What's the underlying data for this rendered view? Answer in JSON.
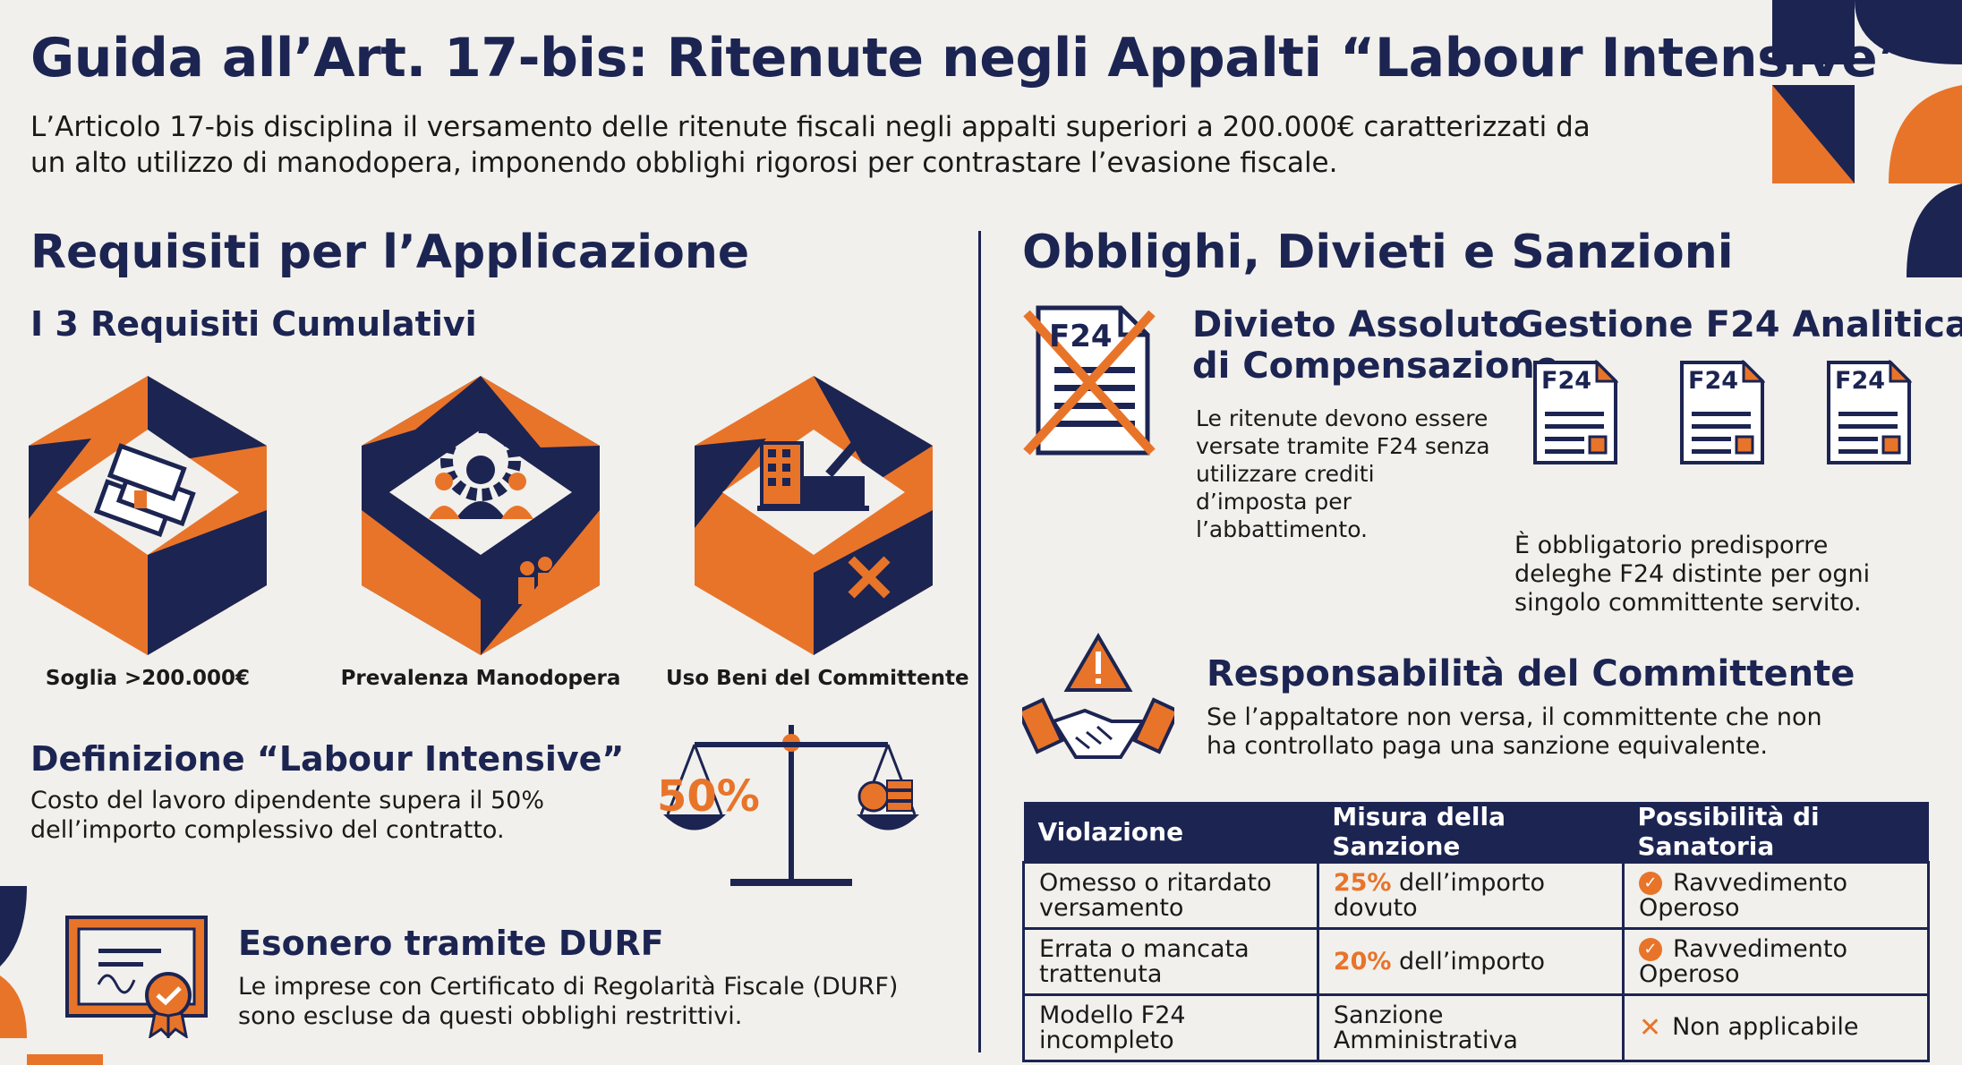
{
  "title": "Guida all’Art. 17-bis: Ritenute negli Appalti “Labour Intensive”",
  "intro": "L’Articolo 17-bis disciplina il versamento delle ritenute fiscali negli appalti superiori a 200.000€ caratterizzati da un alto utilizzo di manodopera, imponendo obblighi rigorosi per contrastare l’evasione fiscale.",
  "left": {
    "heading": "Requisiti per l’Applicazione",
    "subheading": "I 3 Requisiti Cumulativi",
    "requirements": [
      {
        "label": "Soglia >200.000€",
        "icon": "money-stack-icon"
      },
      {
        "label": "Prevalenza Manodopera",
        "icon": "workers-gear-icon"
      },
      {
        "label": "Uso Beni del Committente",
        "icon": "factory-tools-icon"
      }
    ],
    "definition": {
      "title": "Definizione “Labour Intensive”",
      "text": "Costo del lavoro dipendente supera il 50% dell’importo complessivo del contratto.",
      "badge": "50%"
    },
    "durf": {
      "title": "Esonero tramite DURF",
      "text": "Le imprese con Certificato di Regolarità Fiscale (DURF) sono escluse da questi obblighi restrittivi."
    }
  },
  "right": {
    "heading": "Obblighi, Divieti e Sanzioni",
    "divieto": {
      "title_line1": "Divieto Assoluto",
      "title_line2": "di Compensazione",
      "text": "Le ritenute devono essere versate tramite F24 senza utilizzare crediti d’imposta per l’abbattimento.",
      "doc_label": "F24"
    },
    "f24": {
      "title": "Gestione F24 Analitica",
      "doc_labels": [
        "F24",
        "F24",
        "F24"
      ],
      "text": "È obbligatorio predisporre deleghe F24 distinte per ogni singolo committente servito."
    },
    "responsabilita": {
      "title": "Responsabilità del Committente",
      "text": "Se l’appaltatore non versa, il committente che non ha controllato paga una sanzione equivalente."
    },
    "table": {
      "headers": [
        "Violazione",
        "Misura della Sanzione",
        "Possibilità di Sanatoria"
      ],
      "rows": [
        {
          "violazione": "Omesso o ritardato versamento",
          "pct": "25%",
          "misura": " dell’importo dovuto",
          "sanatoria": "Ravvedimento Operoso",
          "status": "ok"
        },
        {
          "violazione": "Errata o mancata trattenuta",
          "pct": "20%",
          "misura": " dell’importo",
          "sanatoria": "Ravvedimento Operoso",
          "status": "ok"
        },
        {
          "violazione": "Modello F24 incompleto",
          "pct": "",
          "misura": "Sanzione Amministrativa",
          "sanatoria": "Non applicabile",
          "status": "no"
        }
      ]
    }
  },
  "colors": {
    "navy": "#1c2452",
    "orange": "#e8742a",
    "background": "#f1f0ec"
  }
}
